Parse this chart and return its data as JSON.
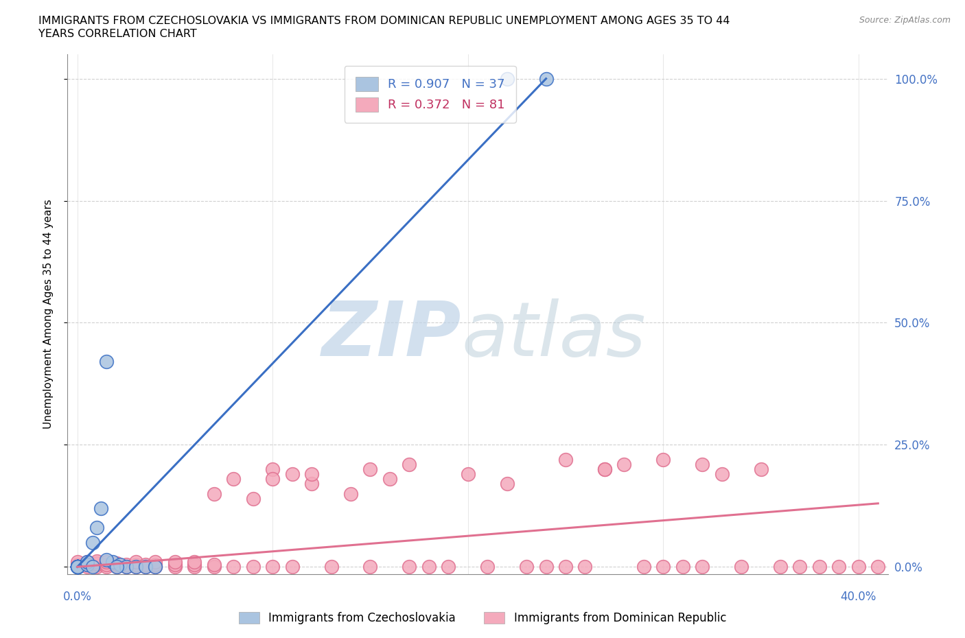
{
  "title_line1": "IMMIGRANTS FROM CZECHOSLOVAKIA VS IMMIGRANTS FROM DOMINICAN REPUBLIC UNEMPLOYMENT AMONG AGES 35 TO 44",
  "title_line2": "YEARS CORRELATION CHART",
  "source": "Source: ZipAtlas.com",
  "ylabel": "Unemployment Among Ages 35 to 44 years",
  "legend1_r": "R = 0.907",
  "legend1_n": "N = 37",
  "legend2_r": "R = 0.372",
  "legend2_n": "N = 81",
  "color_czech": "#aac4e0",
  "color_dom": "#f4aabc",
  "line_color_czech": "#3a6fc4",
  "line_color_dom": "#e07090",
  "watermark_zip_color": "#c0d4e8",
  "watermark_atlas_color": "#b8ccd8",
  "czech_x": [
    0.0,
    0.0,
    0.0,
    0.0,
    0.0,
    0.0,
    0.0,
    0.0,
    0.0,
    0.0,
    0.0,
    0.0,
    0.0,
    0.0,
    0.0,
    0.0,
    0.0,
    0.0,
    0.0,
    0.0,
    0.005,
    0.005,
    0.008,
    0.01,
    0.012,
    0.015,
    0.018,
    0.022,
    0.025,
    0.03,
    0.035,
    0.04,
    0.015,
    0.008,
    0.22,
    0.24,
    0.02
  ],
  "czech_y": [
    0.0,
    0.0,
    0.0,
    0.0,
    0.0,
    0.0,
    0.0,
    0.0,
    0.0,
    0.0,
    0.0,
    0.0,
    0.0,
    0.0,
    0.0,
    0.0,
    0.0,
    0.0,
    0.0,
    0.0,
    0.005,
    0.01,
    0.05,
    0.08,
    0.12,
    0.42,
    0.01,
    0.005,
    0.0,
    0.0,
    0.0,
    0.0,
    0.015,
    0.0,
    1.0,
    1.0,
    0.0
  ],
  "dom_x": [
    0.0,
    0.0,
    0.0,
    0.005,
    0.005,
    0.005,
    0.01,
    0.01,
    0.01,
    0.01,
    0.015,
    0.015,
    0.015,
    0.02,
    0.02,
    0.02,
    0.025,
    0.025,
    0.03,
    0.03,
    0.03,
    0.035,
    0.035,
    0.04,
    0.04,
    0.04,
    0.05,
    0.05,
    0.05,
    0.06,
    0.06,
    0.06,
    0.07,
    0.07,
    0.07,
    0.08,
    0.08,
    0.09,
    0.09,
    0.1,
    0.1,
    0.11,
    0.11,
    0.12,
    0.13,
    0.14,
    0.15,
    0.16,
    0.17,
    0.18,
    0.19,
    0.2,
    0.21,
    0.22,
    0.23,
    0.24,
    0.25,
    0.26,
    0.27,
    0.28,
    0.29,
    0.3,
    0.31,
    0.32,
    0.33,
    0.34,
    0.35,
    0.36,
    0.37,
    0.38,
    0.39,
    0.4,
    0.41,
    0.3,
    0.32,
    0.25,
    0.27,
    0.1,
    0.12,
    0.15,
    0.17
  ],
  "dom_y": [
    0.0,
    0.005,
    0.01,
    0.0,
    0.005,
    0.01,
    0.0,
    0.005,
    0.008,
    0.012,
    0.0,
    0.005,
    0.01,
    0.0,
    0.005,
    0.008,
    0.0,
    0.005,
    0.0,
    0.005,
    0.01,
    0.0,
    0.005,
    0.0,
    0.005,
    0.01,
    0.0,
    0.005,
    0.01,
    0.0,
    0.005,
    0.01,
    0.0,
    0.005,
    0.15,
    0.0,
    0.18,
    0.0,
    0.14,
    0.0,
    0.2,
    0.0,
    0.19,
    0.17,
    0.0,
    0.15,
    0.0,
    0.18,
    0.0,
    0.0,
    0.0,
    0.19,
    0.0,
    0.17,
    0.0,
    0.0,
    0.0,
    0.0,
    0.2,
    0.21,
    0.0,
    0.0,
    0.0,
    0.0,
    0.19,
    0.0,
    0.2,
    0.0,
    0.0,
    0.0,
    0.0,
    0.0,
    0.0,
    0.22,
    0.21,
    0.22,
    0.2,
    0.18,
    0.19,
    0.2,
    0.21
  ],
  "czech_line_x": [
    0.0,
    0.24
  ],
  "czech_line_y": [
    0.0,
    1.0
  ],
  "dom_line_x": [
    0.0,
    0.41
  ],
  "dom_line_y": [
    0.0,
    0.13
  ],
  "xlim": [
    -0.005,
    0.415
  ],
  "ylim": [
    -0.015,
    1.05
  ],
  "ytick_vals": [
    0.0,
    0.25,
    0.5,
    0.75,
    1.0
  ],
  "ytick_labels": [
    "0.0%",
    "25.0%",
    "50.0%",
    "75.0%",
    "100.0%"
  ]
}
